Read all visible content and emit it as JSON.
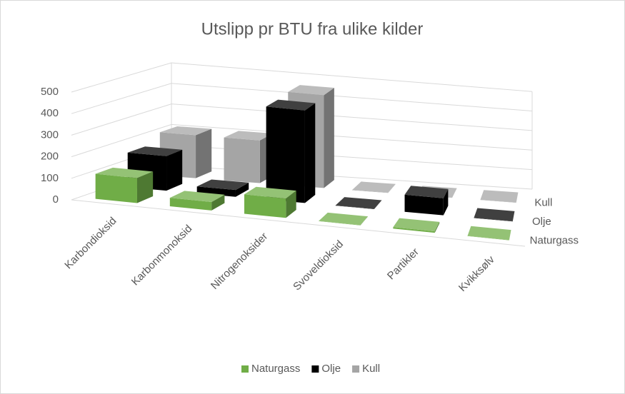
{
  "chart_data": {
    "type": "bar3d",
    "title": "Utslipp pr BTU fra ulike kilder",
    "categories": [
      "Karbondioksid",
      "Karbonmonoksid",
      "Nitrogenoksider",
      "Svoveldioksid",
      "Partikler",
      "Kvikksølv"
    ],
    "series": [
      {
        "name": "Naturgass",
        "color": "#70ad47",
        "values": [
          117,
          40,
          92,
          1,
          7,
          1
        ]
      },
      {
        "name": "Olje",
        "color": "#000000",
        "values": [
          164,
          33,
          448,
          1,
          84,
          1
        ]
      },
      {
        "name": "Kull",
        "color": "#a5a5a5",
        "values": [
          208,
          208,
          457,
          1,
          1,
          1
        ]
      }
    ],
    "ylim": [
      0,
      500
    ],
    "yticks": [
      0,
      100,
      200,
      300,
      400,
      500
    ],
    "grid": true,
    "legend": "bottom"
  }
}
